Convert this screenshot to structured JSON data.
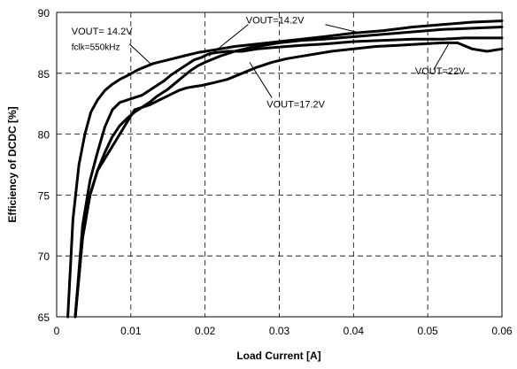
{
  "chart_data": {
    "type": "line",
    "title": "",
    "xlabel": "Load Current [A]",
    "ylabel": "Efficiency of DCDC [%]",
    "xlim": [
      0,
      0.06
    ],
    "ylim": [
      65,
      90
    ],
    "xticks": [
      0,
      0.01,
      0.02,
      0.03,
      0.04,
      0.05,
      0.06
    ],
    "xtick_labels": [
      "0",
      "0.01",
      "0.02",
      "0.03",
      "0.04",
      "0.05",
      "0.06"
    ],
    "yticks": [
      65,
      70,
      75,
      80,
      85,
      90
    ],
    "ytick_labels": [
      "65",
      "70",
      "75",
      "80",
      "85",
      "90"
    ],
    "grid": true,
    "series": [
      {
        "x": [
          0.0015,
          0.0022,
          0.003,
          0.0038,
          0.0046,
          0.0055,
          0.0065,
          0.0075,
          0.0085,
          0.0095,
          0.011,
          0.013,
          0.015,
          0.017,
          0.019,
          0.021,
          0.024,
          0.027,
          0.03,
          0.033,
          0.036,
          0.04,
          0.044,
          0.048,
          0.052,
          0.056,
          0.06
        ],
        "values": [
          65,
          73,
          77.5,
          80,
          81.8,
          82.8,
          83.6,
          84.1,
          84.5,
          84.8,
          85.3,
          85.8,
          86.1,
          86.4,
          86.7,
          86.9,
          87.2,
          87.4,
          87.6,
          87.8,
          88.0,
          88.3,
          88.5,
          88.8,
          89.0,
          89.2,
          89.3
        ]
      },
      {
        "x": [
          0.0025,
          0.0035,
          0.0045,
          0.0055,
          0.0065,
          0.0075,
          0.0085,
          0.0095,
          0.0105,
          0.0115,
          0.0125,
          0.0135,
          0.015,
          0.016,
          0.017,
          0.018,
          0.019,
          0.02,
          0.022,
          0.024,
          0.026,
          0.028,
          0.03,
          0.033,
          0.036,
          0.04,
          0.044,
          0.048,
          0.052,
          0.056,
          0.06
        ],
        "values": [
          65,
          71.5,
          75,
          77,
          78.5,
          79.8,
          80.7,
          81.3,
          81.8,
          82.2,
          82.6,
          83.1,
          83.7,
          84.2,
          84.7,
          85.2,
          85.6,
          85.9,
          86.4,
          86.8,
          87.1,
          87.3,
          87.5,
          87.7,
          87.8,
          88.0,
          88.2,
          88.4,
          88.6,
          88.7,
          88.8
        ]
      },
      {
        "x": [
          0.0025,
          0.0035,
          0.0045,
          0.0055,
          0.0065,
          0.0075,
          0.0085,
          0.0095,
          0.0105,
          0.0115,
          0.0125,
          0.0135,
          0.0145,
          0.0155,
          0.0165,
          0.0175,
          0.0185,
          0.0195,
          0.0205,
          0.0215,
          0.023,
          0.025,
          0.027,
          0.029,
          0.031,
          0.033,
          0.036,
          0.04,
          0.044,
          0.048,
          0.052,
          0.055,
          0.058,
          0.06
        ],
        "values": [
          65,
          72.5,
          76.2,
          78.5,
          80.6,
          82,
          82.6,
          82.8,
          83,
          83.2,
          83.6,
          84.0,
          84.4,
          84.9,
          85.3,
          85.7,
          86.1,
          86.3,
          86.6,
          86.7,
          86.8,
          86.8,
          87.0,
          87.1,
          87.2,
          87.3,
          87.4,
          87.6,
          87.7,
          87.8,
          87.8,
          87.9,
          87.9,
          87.9
        ]
      },
      {
        "x": [
          0.0025,
          0.0035,
          0.0045,
          0.0055,
          0.0065,
          0.0075,
          0.0085,
          0.0095,
          0.0105,
          0.0115,
          0.0125,
          0.0135,
          0.0145,
          0.0155,
          0.0165,
          0.0175,
          0.0185,
          0.0195,
          0.021,
          0.023,
          0.025,
          0.027,
          0.029,
          0.031,
          0.034,
          0.037,
          0.04,
          0.043,
          0.046,
          0.049,
          0.052,
          0.054,
          0.056,
          0.058,
          0.06
        ],
        "values": [
          65,
          71.5,
          75,
          77,
          78,
          79,
          80,
          81,
          82,
          82.2,
          82.4,
          82.7,
          83,
          83.3,
          83.6,
          83.8,
          83.9,
          84.0,
          84.2,
          84.5,
          85.0,
          85.5,
          85.9,
          86.2,
          86.5,
          86.8,
          87.0,
          87.2,
          87.3,
          87.4,
          87.5,
          87.5,
          87.0,
          86.8,
          87.0
        ]
      }
    ],
    "annotations": [
      {
        "text": "VOUT= 14.2V",
        "x": 0.002,
        "y": 88.2
      },
      {
        "text": "fclk=550kHz",
        "x": 0.002,
        "y": 86.9
      },
      {
        "text": "VOUT=14.2V",
        "x": 0.0255,
        "y": 89.1
      },
      {
        "text": "VOUT=17.2V",
        "x": 0.0283,
        "y": 82.2
      },
      {
        "text": "VOUT=22V",
        "x": 0.0483,
        "y": 84.9
      }
    ]
  }
}
